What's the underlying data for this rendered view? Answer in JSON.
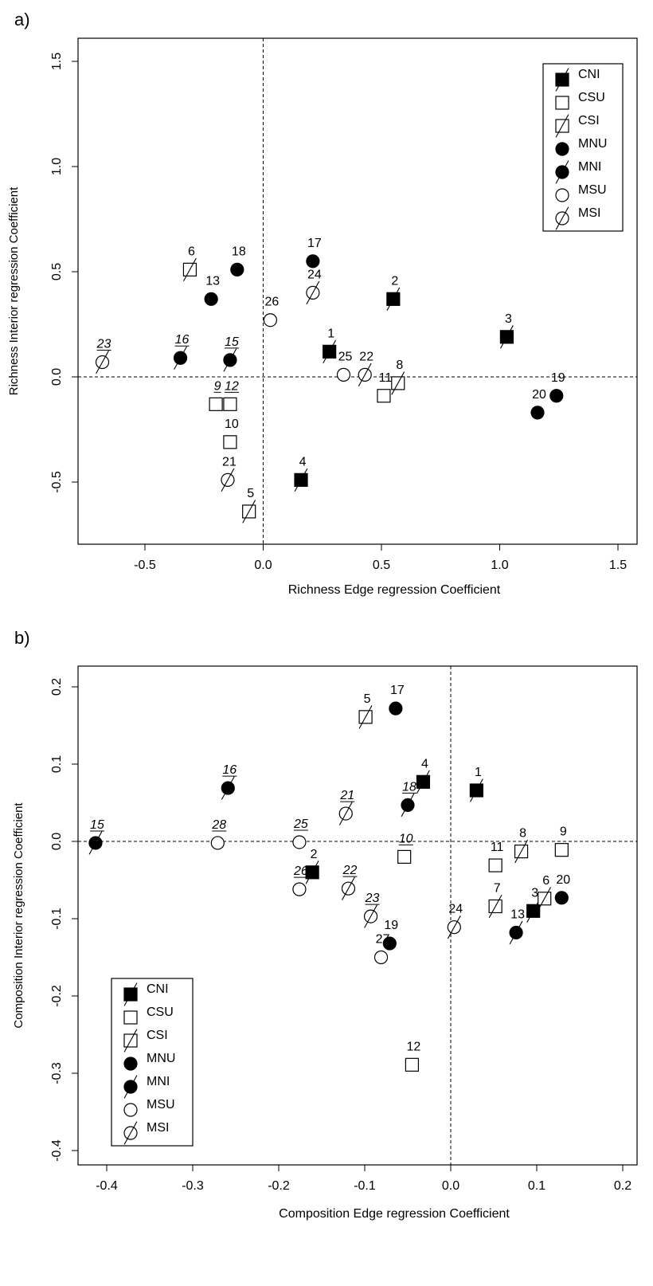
{
  "panels": [
    {
      "label": "a)"
    },
    {
      "label": "b)"
    }
  ],
  "legend_entries": [
    {
      "label": "CNI",
      "shape": "square",
      "filled": true,
      "slash": true
    },
    {
      "label": "CSU",
      "shape": "square",
      "filled": false,
      "slash": false
    },
    {
      "label": "CSI",
      "shape": "square",
      "filled": false,
      "slash": true
    },
    {
      "label": "MNU",
      "shape": "circle",
      "filled": true,
      "slash": false
    },
    {
      "label": "MNI",
      "shape": "circle",
      "filled": true,
      "slash": true
    },
    {
      "label": "MSU",
      "shape": "circle",
      "filled": false,
      "slash": false
    },
    {
      "label": "MSI",
      "shape": "circle",
      "filled": false,
      "slash": true
    }
  ],
  "chart_data": [
    {
      "type": "scatter",
      "panel": "a)",
      "title": "",
      "xlabel": "Richness Edge regression Coefficient",
      "ylabel": "Richness Interior regression Coefficient",
      "xlim": [
        -0.75,
        1.6
      ],
      "ylim": [
        -0.8,
        1.6
      ],
      "xticks": [
        "-0.5",
        "0.0",
        "0.5",
        "1.0",
        "1.5"
      ],
      "xtick_values": [
        -0.5,
        0.0,
        0.5,
        1.0,
        1.5
      ],
      "yticks": [
        "-0.5",
        "0.0",
        "0.5",
        "1.0",
        "1.5"
      ],
      "ytick_values": [
        -0.5,
        0.0,
        0.5,
        1.0,
        1.5
      ],
      "reference_lines": {
        "x": 0,
        "y": 0,
        "style": "dashed"
      },
      "legend_position": "top-right",
      "points": [
        {
          "label": "1",
          "x": 0.28,
          "y": 0.12,
          "group": "CNI",
          "italic": false
        },
        {
          "label": "2",
          "x": 0.55,
          "y": 0.37,
          "group": "CNI",
          "italic": false
        },
        {
          "label": "3",
          "x": 1.03,
          "y": 0.19,
          "group": "CNI",
          "italic": false
        },
        {
          "label": "4",
          "x": 0.16,
          "y": -0.49,
          "group": "CNI",
          "italic": false
        },
        {
          "label": "5",
          "x": -0.06,
          "y": -0.64,
          "group": "CSI",
          "italic": false
        },
        {
          "label": "6",
          "x": -0.31,
          "y": 0.51,
          "group": "CSI",
          "italic": false
        },
        {
          "label": "8",
          "x": 0.57,
          "y": -0.03,
          "group": "CSI",
          "italic": false
        },
        {
          "label": "9",
          "x": -0.2,
          "y": -0.13,
          "group": "CSU",
          "italic": true
        },
        {
          "label": "10",
          "x": -0.14,
          "y": -0.31,
          "group": "CSU",
          "italic": false
        },
        {
          "label": "11",
          "x": 0.51,
          "y": -0.09,
          "group": "CSU",
          "italic": false
        },
        {
          "label": "12",
          "x": -0.14,
          "y": -0.13,
          "group": "CSU",
          "italic": true
        },
        {
          "label": "13",
          "x": -0.22,
          "y": 0.37,
          "group": "MNU",
          "italic": false
        },
        {
          "label": "15",
          "x": -0.14,
          "y": 0.08,
          "group": "MNI",
          "italic": true
        },
        {
          "label": "16",
          "x": -0.35,
          "y": 0.09,
          "group": "MNI",
          "italic": true
        },
        {
          "label": "17",
          "x": 0.21,
          "y": 0.55,
          "group": "MNU",
          "italic": false
        },
        {
          "label": "18",
          "x": -0.11,
          "y": 0.51,
          "group": "MNU",
          "italic": false
        },
        {
          "label": "19",
          "x": 1.24,
          "y": -0.09,
          "group": "MNU",
          "italic": false
        },
        {
          "label": "20",
          "x": 1.16,
          "y": -0.17,
          "group": "MNU",
          "italic": false
        },
        {
          "label": "21",
          "x": -0.15,
          "y": -0.49,
          "group": "MSI",
          "italic": false
        },
        {
          "label": "22",
          "x": 0.43,
          "y": 0.01,
          "group": "MSI",
          "italic": false
        },
        {
          "label": "23",
          "x": -0.68,
          "y": 0.07,
          "group": "MSI",
          "italic": true
        },
        {
          "label": "24",
          "x": 0.21,
          "y": 0.4,
          "group": "MSI",
          "italic": false
        },
        {
          "label": "25",
          "x": 0.34,
          "y": 0.01,
          "group": "MSU",
          "italic": false
        },
        {
          "label": "26",
          "x": 0.03,
          "y": 0.27,
          "group": "MSU",
          "italic": false
        }
      ]
    },
    {
      "type": "scatter",
      "panel": "b)",
      "title": "",
      "xlabel": "Composition Edge regression Coefficient",
      "ylabel": "Composition Interior regression Coefficient",
      "xlim": [
        -0.42,
        0.22
      ],
      "ylim": [
        -0.42,
        0.22
      ],
      "xticks": [
        "-0.4",
        "-0.3",
        "-0.2",
        "-0.1",
        "0.0",
        "0.1",
        "0.2"
      ],
      "xtick_values": [
        -0.4,
        -0.3,
        -0.2,
        -0.1,
        0.0,
        0.1,
        0.2
      ],
      "yticks": [
        "-0.4",
        "-0.3",
        "-0.2",
        "-0.1",
        "0.0",
        "0.1",
        "0.2"
      ],
      "ytick_values": [
        -0.4,
        -0.3,
        -0.2,
        -0.1,
        0.0,
        0.1,
        0.2
      ],
      "reference_lines": {
        "x": 0,
        "y": 0,
        "style": "dashed"
      },
      "legend_position": "bottom-left",
      "points": [
        {
          "label": "1",
          "x": 0.03,
          "y": 0.066,
          "group": "CNI",
          "italic": false
        },
        {
          "label": "2",
          "x": -0.161,
          "y": -0.04,
          "group": "CNI",
          "italic": false
        },
        {
          "label": "3",
          "x": 0.096,
          "y": -0.09,
          "group": "CNI",
          "italic": false
        },
        {
          "label": "4",
          "x": -0.032,
          "y": 0.077,
          "group": "CNI",
          "italic": false
        },
        {
          "label": "5",
          "x": -0.099,
          "y": 0.161,
          "group": "CSI",
          "italic": false
        },
        {
          "label": "6",
          "x": 0.109,
          "y": -0.074,
          "group": "CSI",
          "italic": false
        },
        {
          "label": "7",
          "x": 0.052,
          "y": -0.084,
          "group": "CSI",
          "italic": false
        },
        {
          "label": "8",
          "x": 0.082,
          "y": -0.013,
          "group": "CSI",
          "italic": false
        },
        {
          "label": "9",
          "x": 0.129,
          "y": -0.011,
          "group": "CSU",
          "italic": false
        },
        {
          "label": "10",
          "x": -0.054,
          "y": -0.02,
          "group": "CSU",
          "italic": true
        },
        {
          "label": "11",
          "x": 0.052,
          "y": -0.031,
          "group": "CSU",
          "italic": false
        },
        {
          "label": "12",
          "x": -0.045,
          "y": -0.289,
          "group": "CSU",
          "italic": false
        },
        {
          "label": "13",
          "x": 0.076,
          "y": -0.118,
          "group": "MNI",
          "italic": false
        },
        {
          "label": "15",
          "x": -0.413,
          "y": -0.002,
          "group": "MNI",
          "italic": true
        },
        {
          "label": "16",
          "x": -0.259,
          "y": 0.069,
          "group": "MNI",
          "italic": true
        },
        {
          "label": "17",
          "x": -0.064,
          "y": 0.172,
          "group": "MNU",
          "italic": false
        },
        {
          "label": "18",
          "x": -0.05,
          "y": 0.047,
          "group": "MNI",
          "italic": true
        },
        {
          "label": "19",
          "x": -0.071,
          "y": -0.132,
          "group": "MNU",
          "italic": false
        },
        {
          "label": "20",
          "x": 0.129,
          "y": -0.073,
          "group": "MNU",
          "italic": false
        },
        {
          "label": "21",
          "x": -0.122,
          "y": 0.036,
          "group": "MSI",
          "italic": true
        },
        {
          "label": "22",
          "x": -0.119,
          "y": -0.061,
          "group": "MSI",
          "italic": true
        },
        {
          "label": "23",
          "x": -0.093,
          "y": -0.097,
          "group": "MSI",
          "italic": true
        },
        {
          "label": "24",
          "x": 0.004,
          "y": -0.111,
          "group": "MSI",
          "italic": false
        },
        {
          "label": "25",
          "x": -0.176,
          "y": -0.001,
          "group": "MSU",
          "italic": true
        },
        {
          "label": "26",
          "x": -0.176,
          "y": -0.062,
          "group": "MSU",
          "italic": true
        },
        {
          "label": "27",
          "x": -0.081,
          "y": -0.15,
          "group": "MSU",
          "italic": false
        },
        {
          "label": "28",
          "x": -0.271,
          "y": -0.002,
          "group": "MSU",
          "italic": true
        }
      ]
    }
  ]
}
